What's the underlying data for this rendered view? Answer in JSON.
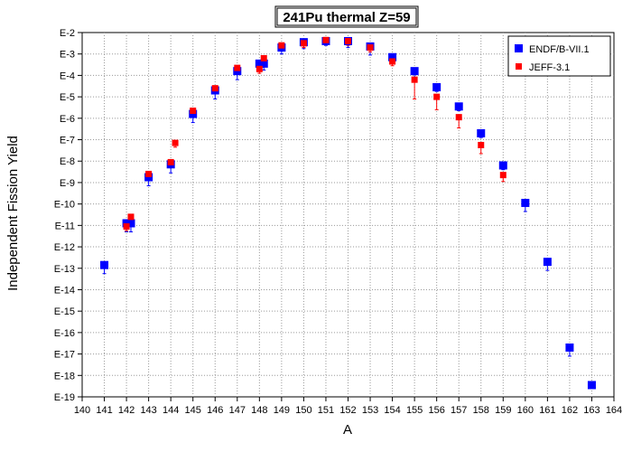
{
  "chart_data": {
    "type": "scatter",
    "title": "241Pu thermal Z=59",
    "xlabel": "A",
    "ylabel": "Independent Fission Yield",
    "xlim": [
      140,
      164
    ],
    "x_ticks": [
      140,
      141,
      142,
      143,
      144,
      145,
      146,
      147,
      148,
      149,
      150,
      151,
      152,
      153,
      154,
      155,
      156,
      157,
      158,
      159,
      160,
      161,
      162,
      163,
      164
    ],
    "y_log_scale": true,
    "ylim_exponent": [
      -19,
      -2
    ],
    "y_tick_labels": [
      "E-2",
      "E-3",
      "E-4",
      "E-5",
      "E-6",
      "E-7",
      "E-8",
      "E-9",
      "E-10",
      "E-11",
      "E-12",
      "E-13",
      "E-14",
      "E-15",
      "E-16",
      "E-17",
      "E-18",
      "E-19"
    ],
    "grid": true,
    "legend_position": "top-right",
    "series": [
      {
        "name": "ENDF/B-VII.1",
        "color": "#0000ff",
        "marker": "square",
        "points": [
          {
            "x": 141,
            "log10y": -12.85,
            "err": 0.4
          },
          {
            "x": 142,
            "log10y": -10.9,
            "err": 0.4
          },
          {
            "x": 142.2,
            "log10y": -10.9,
            "err": 0.4
          },
          {
            "x": 143,
            "log10y": -8.75,
            "err": 0.4
          },
          {
            "x": 144,
            "log10y": -8.15,
            "err": 0.4
          },
          {
            "x": 145,
            "log10y": -5.8,
            "err": 0.4
          },
          {
            "x": 146,
            "log10y": -4.7,
            "err": 0.4
          },
          {
            "x": 147,
            "log10y": -3.8,
            "err": 0.4
          },
          {
            "x": 148,
            "log10y": -3.45,
            "err": 0.3
          },
          {
            "x": 148.2,
            "log10y": -3.45,
            "err": 0.3
          },
          {
            "x": 149,
            "log10y": -2.7,
            "err": 0.3
          },
          {
            "x": 150,
            "log10y": -2.45,
            "err": 0.3
          },
          {
            "x": 151,
            "log10y": -2.4,
            "err": 0.2
          },
          {
            "x": 152,
            "log10y": -2.4,
            "err": 0.3
          },
          {
            "x": 153,
            "log10y": -2.65,
            "err": 0.4
          },
          {
            "x": 154,
            "log10y": -3.15,
            "err": 0.3
          },
          {
            "x": 155,
            "log10y": -3.8,
            "err": 0.3
          },
          {
            "x": 156,
            "log10y": -4.55,
            "err": 0.2
          },
          {
            "x": 157,
            "log10y": -5.45,
            "err": 0.2
          },
          {
            "x": 158,
            "log10y": -6.7,
            "err": 0.2
          },
          {
            "x": 159,
            "log10y": -8.2,
            "err": 0.2
          },
          {
            "x": 160,
            "log10y": -9.95,
            "err": 0.4
          },
          {
            "x": 161,
            "log10y": -12.7,
            "err": 0.4
          },
          {
            "x": 162,
            "log10y": -16.7,
            "err": 0.4
          },
          {
            "x": 163,
            "log10y": -18.45,
            "err": 0.15
          }
        ]
      },
      {
        "name": "JEFF-3.1",
        "color": "#ff0000",
        "marker": "square",
        "points": [
          {
            "x": 142,
            "log10y": -11.05,
            "err": 0.2
          },
          {
            "x": 142.2,
            "log10y": -10.6,
            "err": 0.2
          },
          {
            "x": 143,
            "log10y": -8.6,
            "err": 0.2
          },
          {
            "x": 144,
            "log10y": -8.05,
            "err": 0.2
          },
          {
            "x": 144.2,
            "log10y": -7.15,
            "err": 0.2
          },
          {
            "x": 145,
            "log10y": -5.65,
            "err": 0.2
          },
          {
            "x": 146,
            "log10y": -4.6,
            "err": 0.2
          },
          {
            "x": 147,
            "log10y": -3.65,
            "err": 0.2
          },
          {
            "x": 148,
            "log10y": -3.7,
            "err": 0.2
          },
          {
            "x": 148.2,
            "log10y": -3.2,
            "err": 0.2
          },
          {
            "x": 149,
            "log10y": -2.6,
            "err": 0.2
          },
          {
            "x": 150,
            "log10y": -2.5,
            "err": 0.2
          },
          {
            "x": 151,
            "log10y": -2.35,
            "err": 0.2
          },
          {
            "x": 152,
            "log10y": -2.4,
            "err": 0.2
          },
          {
            "x": 153,
            "log10y": -2.7,
            "err": 0.2
          },
          {
            "x": 154,
            "log10y": -3.35,
            "err": 0.2
          },
          {
            "x": 155,
            "log10y": -4.2,
            "err": 0.9
          },
          {
            "x": 156,
            "log10y": -5.0,
            "err": 0.6
          },
          {
            "x": 157,
            "log10y": -5.95,
            "err": 0.5
          },
          {
            "x": 158,
            "log10y": -7.25,
            "err": 0.4
          },
          {
            "x": 159,
            "log10y": -8.65,
            "err": 0.3
          }
        ]
      }
    ]
  }
}
